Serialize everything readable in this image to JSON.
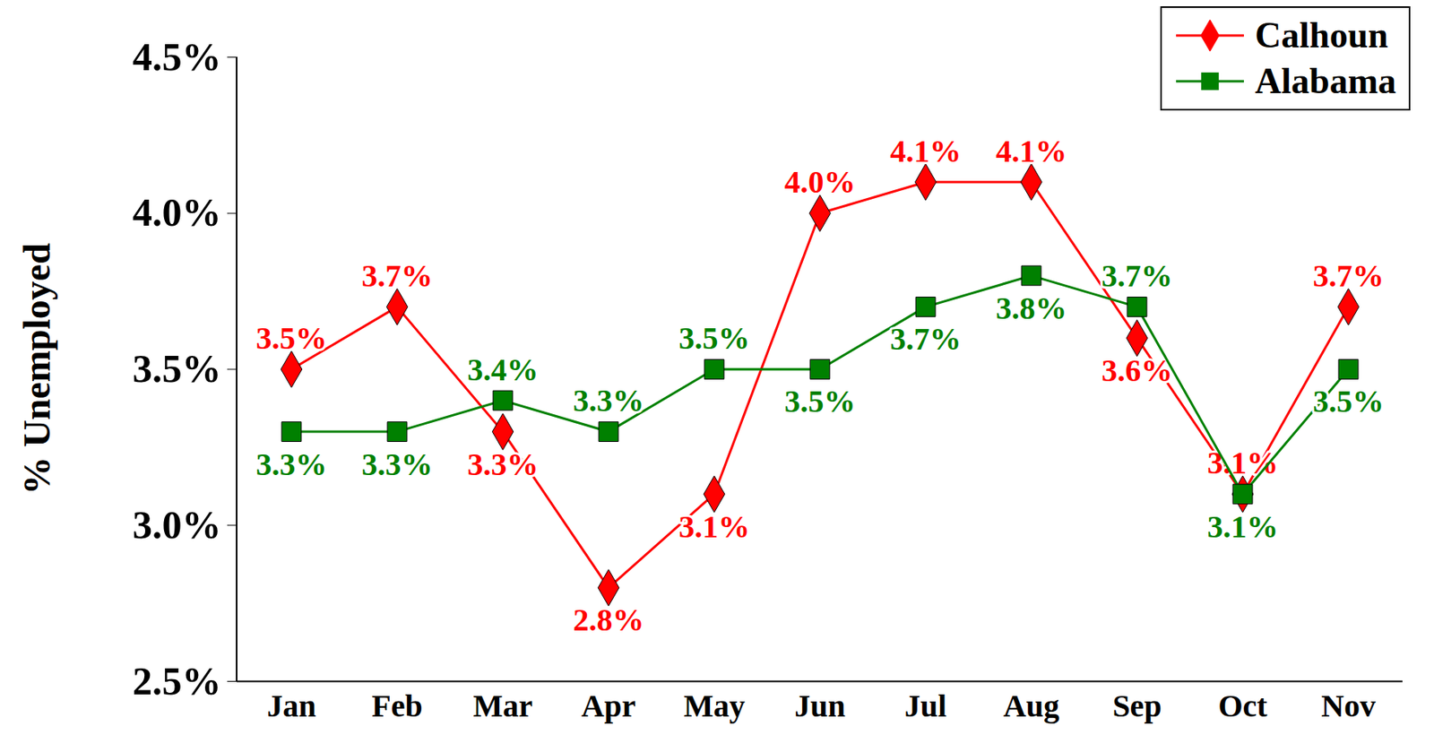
{
  "chart_data": {
    "type": "line",
    "y_label": "% Unemployed",
    "categories": [
      "Jan",
      "Feb",
      "Mar",
      "Apr",
      "May",
      "Jun",
      "Jul",
      "Aug",
      "Sep",
      "Oct",
      "Nov"
    ],
    "series": [
      {
        "name": "Calhoun",
        "color": "#ff0000",
        "marker": "diamond",
        "line_style": "solid",
        "values": [
          3.5,
          3.7,
          3.3,
          2.8,
          3.1,
          4.0,
          4.1,
          4.1,
          3.6,
          3.1,
          3.7
        ],
        "value_labels": [
          "3.5%",
          "3.7%",
          "3.3%",
          "2.8%",
          "3.1%",
          "4.0%",
          "4.1%",
          "4.1%",
          "3.6%",
          "3.1%",
          "3.7%"
        ]
      },
      {
        "name": "Alabama",
        "color": "#008000",
        "marker": "square",
        "line_style": "solid",
        "values": [
          3.3,
          3.3,
          3.4,
          3.3,
          3.5,
          3.5,
          3.7,
          3.8,
          3.7,
          3.1,
          3.5
        ],
        "value_labels": [
          "3.3%",
          "3.3%",
          "3.4%",
          "3.3%",
          "3.5%",
          "3.5%",
          "3.7%",
          "3.8%",
          "3.7%",
          "3.1%",
          "3.5%"
        ]
      }
    ],
    "ylim": [
      2.5,
      4.5
    ],
    "yticks": [
      {
        "value": 2.5,
        "label": "2.5%"
      },
      {
        "value": 3.0,
        "label": "3.0%"
      },
      {
        "value": 3.5,
        "label": "3.5%"
      },
      {
        "value": 4.0,
        "label": "4.0%"
      },
      {
        "value": 4.5,
        "label": "4.5%"
      }
    ],
    "grid": false,
    "data_labels": true,
    "legend": "top-right"
  }
}
